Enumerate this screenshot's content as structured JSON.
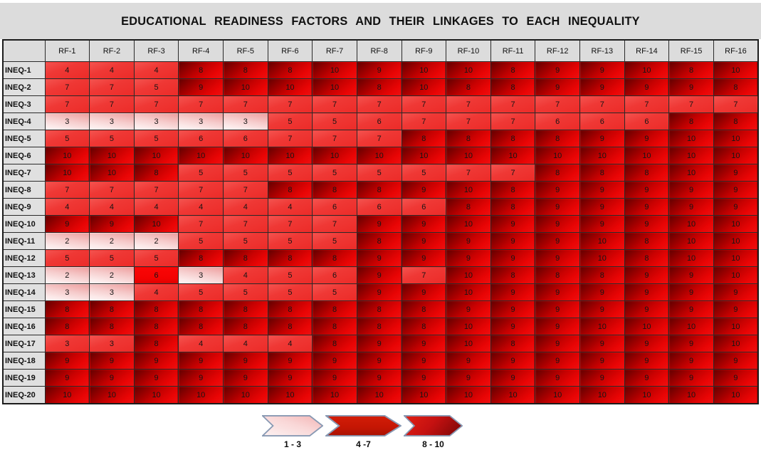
{
  "title": "EDUCATIONAL READINESS FACTORS AND THEIR LINKAGES TO EACH INEQUALITY",
  "chart_data": {
    "type": "heatmap",
    "title": "EDUCATIONAL READINESS FACTORS AND THEIR LINKAGES TO EACH INEQUALITY",
    "columns": [
      "RF-1",
      "RF-2",
      "RF-3",
      "RF-4",
      "RF-5",
      "RF-6",
      "RF-7",
      "RF-8",
      "RF-9",
      "RF-10",
      "RF-11",
      "RF-12",
      "RF-13",
      "RF-14",
      "RF-15",
      "RF-16"
    ],
    "rows": [
      "INEQ-1",
      "INEQ-2",
      "INEQ-3",
      "INEQ-4",
      "INEQ-5",
      "INEQ-6",
      "INEQ-7",
      "INEQ-8",
      "INEQ-9",
      "INEQ-10",
      "INEQ-11",
      "INEQ-12",
      "INEQ-13",
      "INEQ-14",
      "INEQ-15",
      "INEQ-16",
      "INEQ-17",
      "INEQ-18",
      "INEQ-19",
      "INEQ-20"
    ],
    "values": [
      [
        4,
        4,
        4,
        8,
        8,
        8,
        10,
        9,
        10,
        10,
        8,
        9,
        9,
        10,
        8,
        10
      ],
      [
        7,
        7,
        5,
        9,
        10,
        10,
        10,
        8,
        10,
        8,
        8,
        9,
        9,
        9,
        9,
        8
      ],
      [
        7,
        7,
        7,
        7,
        7,
        7,
        7,
        7,
        7,
        7,
        7,
        7,
        7,
        7,
        7,
        7
      ],
      [
        3,
        3,
        3,
        3,
        3,
        5,
        5,
        6,
        7,
        7,
        7,
        6,
        6,
        6,
        8,
        8
      ],
      [
        5,
        5,
        5,
        6,
        6,
        7,
        7,
        7,
        8,
        8,
        8,
        8,
        9,
        9,
        10,
        10
      ],
      [
        10,
        10,
        10,
        10,
        10,
        10,
        10,
        10,
        10,
        10,
        10,
        10,
        10,
        10,
        10,
        10
      ],
      [
        10,
        10,
        8,
        5,
        5,
        5,
        5,
        5,
        5,
        7,
        7,
        8,
        8,
        8,
        10,
        9
      ],
      [
        7,
        7,
        7,
        7,
        7,
        8,
        8,
        8,
        9,
        10,
        8,
        9,
        9,
        9,
        9,
        9
      ],
      [
        4,
        4,
        4,
        4,
        4,
        4,
        6,
        6,
        6,
        8,
        8,
        9,
        9,
        9,
        9,
        9
      ],
      [
        9,
        9,
        10,
        7,
        7,
        7,
        7,
        9,
        9,
        10,
        9,
        9,
        9,
        9,
        10,
        10
      ],
      [
        2,
        2,
        2,
        5,
        5,
        5,
        5,
        8,
        9,
        9,
        9,
        9,
        10,
        8,
        10,
        10
      ],
      [
        5,
        5,
        5,
        8,
        8,
        8,
        8,
        9,
        9,
        9,
        9,
        9,
        10,
        8,
        10,
        10
      ],
      [
        2,
        2,
        6,
        3,
        4,
        5,
        6,
        9,
        7,
        10,
        8,
        8,
        8,
        9,
        9,
        10
      ],
      [
        3,
        3,
        4,
        5,
        5,
        5,
        5,
        9,
        9,
        10,
        9,
        9,
        9,
        9,
        9,
        9
      ],
      [
        8,
        8,
        8,
        8,
        8,
        8,
        8,
        8,
        8,
        9,
        9,
        9,
        9,
        9,
        9,
        9
      ],
      [
        8,
        8,
        8,
        8,
        8,
        8,
        8,
        8,
        8,
        10,
        9,
        9,
        10,
        10,
        10,
        10
      ],
      [
        3,
        3,
        8,
        4,
        4,
        4,
        8,
        9,
        9,
        10,
        8,
        9,
        9,
        9,
        9,
        10
      ],
      [
        9,
        9,
        9,
        9,
        9,
        9,
        9,
        9,
        9,
        9,
        9,
        9,
        9,
        9,
        9,
        9
      ],
      [
        9,
        9,
        9,
        9,
        9,
        9,
        9,
        9,
        9,
        9,
        9,
        9,
        9,
        9,
        9,
        9
      ],
      [
        10,
        10,
        10,
        10,
        10,
        10,
        10,
        10,
        10,
        10,
        10,
        10,
        10,
        10,
        10,
        10
      ]
    ],
    "value_range": [
      1,
      10
    ],
    "color_bins": [
      {
        "label": "1 - 3",
        "range": [
          1,
          3
        ],
        "tone": "light",
        "color": "#f6c5c5"
      },
      {
        "label": "4 -7",
        "range": [
          4,
          7
        ],
        "tone": "medium",
        "color": "#ee3431"
      },
      {
        "label": "8 - 10",
        "range": [
          8,
          10
        ],
        "tone": "dark",
        "color": "#a50000"
      }
    ],
    "tone_exceptions": [
      {
        "row": "INEQ-13",
        "col": "RF-3",
        "tone": "vivid"
      },
      {
        "row": "INEQ-17",
        "col": "RF-1",
        "tone": "medium"
      },
      {
        "row": "INEQ-17",
        "col": "RF-2",
        "tone": "medium"
      }
    ],
    "grid": true,
    "legend_position": "bottom"
  },
  "colors": {
    "title_band": "#dcdcdc",
    "header_cell": "#dcdcdc",
    "grid_line": "#2a2a2a",
    "legend_border": "#8899b3"
  }
}
